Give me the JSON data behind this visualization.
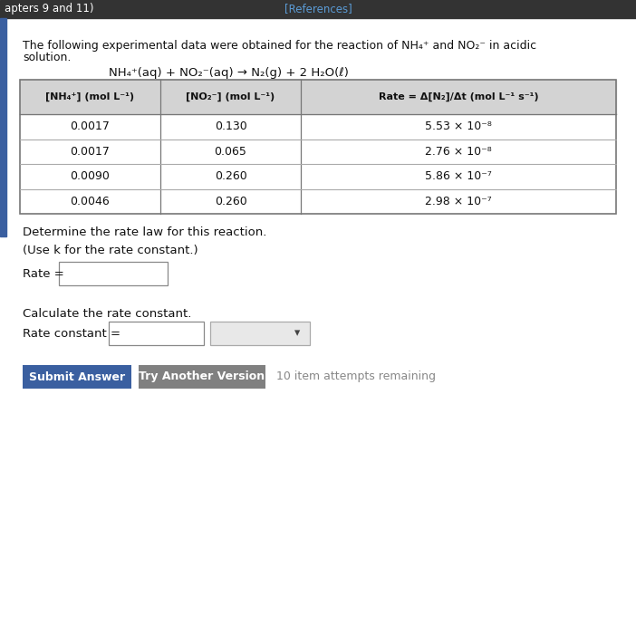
{
  "title_bar_color": "#333333",
  "title_bar_text_left": "apters 9 and 11)",
  "title_bar_text_center": "[References]",
  "title_bar_text_color": "#ffffff",
  "title_bar_ref_color": "#5b9bd5",
  "bg_color": "#f0f0f0",
  "content_bg": "#ffffff",
  "left_bar_color": "#3a5fa0",
  "intro_line1": "The following experimental data were obtained for the reaction of NH₄⁺ and NO₂⁻ in acidic",
  "intro_line2": "solution.",
  "equation": "NH₄⁺(aq) + NO₂⁻(aq) → N₂(g) + 2 H₂O(ℓ)",
  "col1_header": "[NH₄⁺] (mol L⁻¹)",
  "col2_header": "[NO₂⁻] (mol L⁻¹)",
  "col3_header": "Rate = Δ[N₂]/Δt (mol L⁻¹ s⁻¹)",
  "table_data": [
    [
      "0.0017",
      "0.130",
      "5.53 × 10⁻⁸"
    ],
    [
      "0.0017",
      "0.065",
      "2.76 × 10⁻⁸"
    ],
    [
      "0.0090",
      "0.260",
      "5.86 × 10⁻⁷"
    ],
    [
      "0.0046",
      "0.260",
      "2.98 × 10⁻⁷"
    ]
  ],
  "determine_text": "Determine the rate law for this reaction.",
  "use_k_text": "(Use k for the rate constant.)",
  "rate_label": "Rate =",
  "calc_text": "Calculate the rate constant.",
  "rate_const_label": "Rate constant =",
  "submit_btn_color": "#3a5fa0",
  "submit_btn_text": "Submit Answer",
  "try_btn_color": "#808080",
  "try_btn_text": "Try Another Version",
  "attempts_text": "10 item attempts remaining",
  "font_color": "#111111",
  "table_header_bg": "#d3d3d3",
  "table_border_color": "#777777",
  "table_line_color": "#aaaaaa"
}
